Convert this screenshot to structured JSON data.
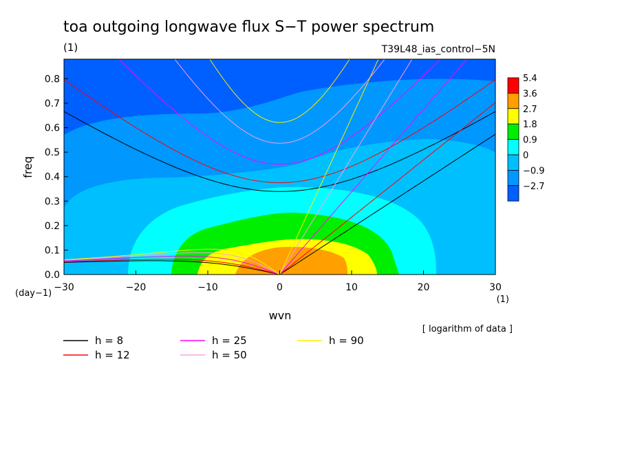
{
  "chart_data": {
    "type": "heatmap",
    "title": "toa outgoing longwave flux S−T power spectrum",
    "units_label": "(1)",
    "run_label": "T39L48_ias_control−5N",
    "xlabel": "wvn",
    "x_units": "(1)",
    "ylabel": "freq",
    "y_units": "(day−1)",
    "note": "[ logarithm of data ]",
    "xlim": [
      -30,
      30
    ],
    "ylim": [
      0.0,
      0.88
    ],
    "x_ticks": [
      "−30",
      "−20",
      "−10",
      "0",
      "10",
      "20",
      "30"
    ],
    "y_ticks": [
      "0.0",
      "0.1",
      "0.2",
      "0.3",
      "0.4",
      "0.5",
      "0.6",
      "0.7",
      "0.8"
    ],
    "x_tick_values": [
      -30,
      -20,
      -10,
      0,
      10,
      20,
      30
    ],
    "y_tick_values": [
      0.0,
      0.1,
      0.2,
      0.3,
      0.4,
      0.5,
      0.6,
      0.7,
      0.8
    ],
    "colorbar": {
      "labels": [
        "5.4",
        "3.6",
        "2.7",
        "1.8",
        "0.9",
        "0",
        "−0.9",
        "−2.7"
      ],
      "colors": [
        "#ff0000",
        "#ff9f00",
        "#ffff00",
        "#00ef00",
        "#00ffff",
        "#00bfff",
        "#0097ff",
        "#005fff"
      ]
    },
    "contour_levels": [
      {
        "level": "< −0.9",
        "color": "#005fff"
      },
      {
        "level": "−0.9 – 0",
        "color": "#0097ff"
      },
      {
        "level": "0 – 0.9",
        "color": "#00bfff"
      },
      {
        "level": "0.9 – 1.8",
        "color": "#00ffff"
      },
      {
        "level": "1.8 – 2.7",
        "color": "#00ef00"
      },
      {
        "level": "2.7 – 3.6",
        "color": "#ffff00"
      },
      {
        "level": "3.6 – 5.4",
        "color": "#ff9f00"
      },
      {
        "level": "> 5.4",
        "color": "#ff0000"
      }
    ],
    "dispersion_curves": [
      {
        "label": "h =  8",
        "color": "#000000",
        "h": 8
      },
      {
        "label": "h = 12",
        "color": "#ff0000",
        "h": 12
      },
      {
        "label": "h = 25",
        "color": "#ff00ff",
        "h": 25
      },
      {
        "label": "h = 50",
        "color": "#ff9fdf",
        "h": 50
      },
      {
        "label": "h = 90",
        "color": "#ffef00",
        "h": 90
      }
    ],
    "grid": false
  }
}
